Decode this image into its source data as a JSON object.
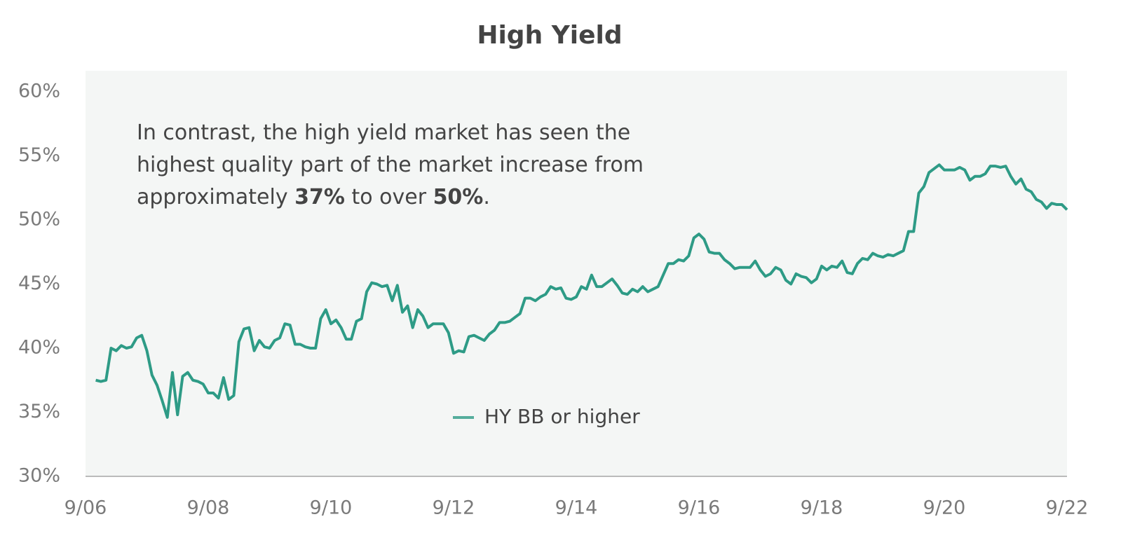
{
  "chart_data": {
    "type": "line",
    "title": "High Yield",
    "annotation": [
      [
        {
          "text": "In contrast, the high yield market has seen the"
        }
      ],
      [
        {
          "text": "highest quality part of the market increase from"
        }
      ],
      [
        {
          "text": "approximately "
        },
        {
          "text": "37%",
          "bold": true
        },
        {
          "text": " to over "
        },
        {
          "text": "50%",
          "bold": true
        },
        {
          "text": "."
        }
      ]
    ],
    "x": [
      "2006-11",
      "2006-12",
      "2007-01",
      "2007-02",
      "2007-03",
      "2007-04",
      "2007-05",
      "2007-06",
      "2007-07",
      "2007-08",
      "2007-09",
      "2007-10",
      "2007-11",
      "2007-12",
      "2008-01",
      "2008-02",
      "2008-03",
      "2008-04",
      "2008-05",
      "2008-06",
      "2008-07",
      "2008-08",
      "2008-09",
      "2008-10",
      "2008-11",
      "2008-12",
      "2009-01",
      "2009-02",
      "2009-03",
      "2009-04",
      "2009-05",
      "2009-06",
      "2009-07",
      "2009-08",
      "2009-09",
      "2009-10",
      "2009-11",
      "2009-12",
      "2010-01",
      "2010-02",
      "2010-03",
      "2010-04",
      "2010-05",
      "2010-06",
      "2010-07",
      "2010-08",
      "2010-09",
      "2010-10",
      "2010-11",
      "2010-12",
      "2011-01",
      "2011-02",
      "2011-03",
      "2011-04",
      "2011-05",
      "2011-06",
      "2011-07",
      "2011-08",
      "2011-09",
      "2011-10",
      "2011-11",
      "2011-12",
      "2012-01",
      "2012-02",
      "2012-03",
      "2012-04",
      "2012-05",
      "2012-06",
      "2012-07",
      "2012-08",
      "2012-09",
      "2012-10",
      "2012-11",
      "2012-12",
      "2013-01",
      "2013-02",
      "2013-03",
      "2013-04",
      "2013-05",
      "2013-06",
      "2013-07",
      "2013-08",
      "2013-09",
      "2013-10",
      "2013-11",
      "2013-12",
      "2014-01",
      "2014-02",
      "2014-03",
      "2014-04",
      "2014-05",
      "2014-06",
      "2014-07",
      "2014-08",
      "2014-09",
      "2014-10",
      "2014-11",
      "2014-12",
      "2015-01",
      "2015-02",
      "2015-03",
      "2015-04",
      "2015-05",
      "2015-06",
      "2015-07",
      "2015-08",
      "2015-09",
      "2015-10",
      "2015-11",
      "2015-12",
      "2016-01",
      "2016-02",
      "2016-03",
      "2016-04",
      "2016-05",
      "2016-06",
      "2016-07",
      "2016-08",
      "2016-09",
      "2016-10",
      "2016-11",
      "2016-12",
      "2017-01",
      "2017-02",
      "2017-03",
      "2017-04",
      "2017-05",
      "2017-06",
      "2017-07",
      "2017-08",
      "2017-09",
      "2017-10",
      "2017-11",
      "2017-12",
      "2018-01",
      "2018-02",
      "2018-03",
      "2018-04",
      "2018-05",
      "2018-06",
      "2018-07",
      "2018-08",
      "2018-09",
      "2018-10",
      "2018-11",
      "2018-12",
      "2019-01",
      "2019-02",
      "2019-03",
      "2019-04",
      "2019-05",
      "2019-06",
      "2019-07",
      "2019-08",
      "2019-09",
      "2019-10",
      "2019-11",
      "2019-12",
      "2020-01",
      "2020-02",
      "2020-03",
      "2020-04",
      "2020-05",
      "2020-06",
      "2020-07",
      "2020-08",
      "2020-09",
      "2020-10",
      "2020-11",
      "2020-12",
      "2021-01",
      "2021-02",
      "2021-03",
      "2021-04",
      "2021-05",
      "2021-06",
      "2021-07",
      "2021-08",
      "2021-09",
      "2021-10",
      "2021-11",
      "2021-12",
      "2022-01",
      "2022-02",
      "2022-03",
      "2022-04",
      "2022-05",
      "2022-06",
      "2022-07",
      "2022-08",
      "2022-09"
    ],
    "series": [
      {
        "name": "HY BB or higher",
        "color": "#2e9b86",
        "values": [
          37.5,
          37.4,
          37.5,
          40.0,
          39.8,
          40.2,
          40.0,
          40.1,
          40.8,
          41.0,
          39.8,
          37.9,
          37.1,
          35.9,
          34.6,
          38.1,
          34.8,
          37.8,
          38.1,
          37.5,
          37.4,
          37.2,
          36.5,
          36.5,
          36.1,
          37.7,
          36.0,
          36.3,
          40.5,
          41.5,
          41.6,
          39.8,
          40.6,
          40.1,
          40.0,
          40.6,
          40.8,
          41.9,
          41.8,
          40.3,
          40.3,
          40.1,
          40.0,
          40.0,
          42.3,
          43.0,
          41.9,
          42.2,
          41.6,
          40.7,
          40.7,
          42.1,
          42.3,
          44.4,
          45.1,
          45.0,
          44.8,
          44.9,
          43.7,
          44.9,
          42.8,
          43.3,
          41.6,
          43.0,
          42.5,
          41.6,
          41.9,
          41.9,
          41.9,
          41.2,
          39.6,
          39.8,
          39.7,
          40.9,
          41.0,
          40.8,
          40.6,
          41.1,
          41.4,
          42.0,
          42.0,
          42.1,
          42.4,
          42.7,
          43.9,
          43.9,
          43.7,
          44.0,
          44.2,
          44.8,
          44.6,
          44.7,
          43.9,
          43.8,
          44.0,
          44.8,
          44.6,
          45.7,
          44.8,
          44.8,
          45.1,
          45.4,
          44.9,
          44.3,
          44.2,
          44.6,
          44.4,
          44.8,
          44.4,
          44.6,
          44.8,
          45.7,
          46.6,
          46.6,
          46.9,
          46.8,
          47.2,
          48.6,
          48.9,
          48.5,
          47.5,
          47.4,
          47.4,
          46.9,
          46.6,
          46.2,
          46.3,
          46.3,
          46.3,
          46.8,
          46.1,
          45.6,
          45.8,
          46.3,
          46.1,
          45.3,
          45.0,
          45.8,
          45.6,
          45.5,
          45.1,
          45.4,
          46.4,
          46.1,
          46.4,
          46.3,
          46.8,
          45.9,
          45.8,
          46.6,
          47.0,
          46.9,
          47.4,
          47.2,
          47.1,
          47.3,
          47.2,
          47.4,
          47.6,
          49.1,
          49.1,
          52.1,
          52.6,
          53.7,
          54.0,
          54.3,
          53.9,
          53.9,
          53.9,
          54.1,
          53.9,
          53.1,
          53.4,
          53.4,
          53.6,
          54.2,
          54.2,
          54.1,
          54.2,
          53.4,
          52.8,
          53.2,
          52.4,
          52.2,
          51.6,
          51.4,
          50.9,
          51.3,
          51.2,
          51.2,
          50.8
        ]
      }
    ],
    "xlim": [
      "2006-09",
      "2022-09"
    ],
    "xticks": [
      {
        "value": "2006-09",
        "label": "9/06"
      },
      {
        "value": "2008-09",
        "label": "9/08"
      },
      {
        "value": "2010-09",
        "label": "9/10"
      },
      {
        "value": "2012-09",
        "label": "9/12"
      },
      {
        "value": "2014-09",
        "label": "9/14"
      },
      {
        "value": "2016-09",
        "label": "9/16"
      },
      {
        "value": "2018-09",
        "label": "9/18"
      },
      {
        "value": "2020-09",
        "label": "9/20"
      },
      {
        "value": "2022-09",
        "label": "9/22"
      }
    ],
    "ylim": [
      30,
      60
    ],
    "yticks": [
      {
        "value": 30,
        "label": "30%"
      },
      {
        "value": 35,
        "label": "35%"
      },
      {
        "value": 40,
        "label": "40%"
      },
      {
        "value": 45,
        "label": "45%"
      },
      {
        "value": 50,
        "label": "50%"
      },
      {
        "value": 55,
        "label": "55%"
      },
      {
        "value": 60,
        "label": "60%"
      }
    ],
    "grid": false,
    "legend": "bottom"
  }
}
